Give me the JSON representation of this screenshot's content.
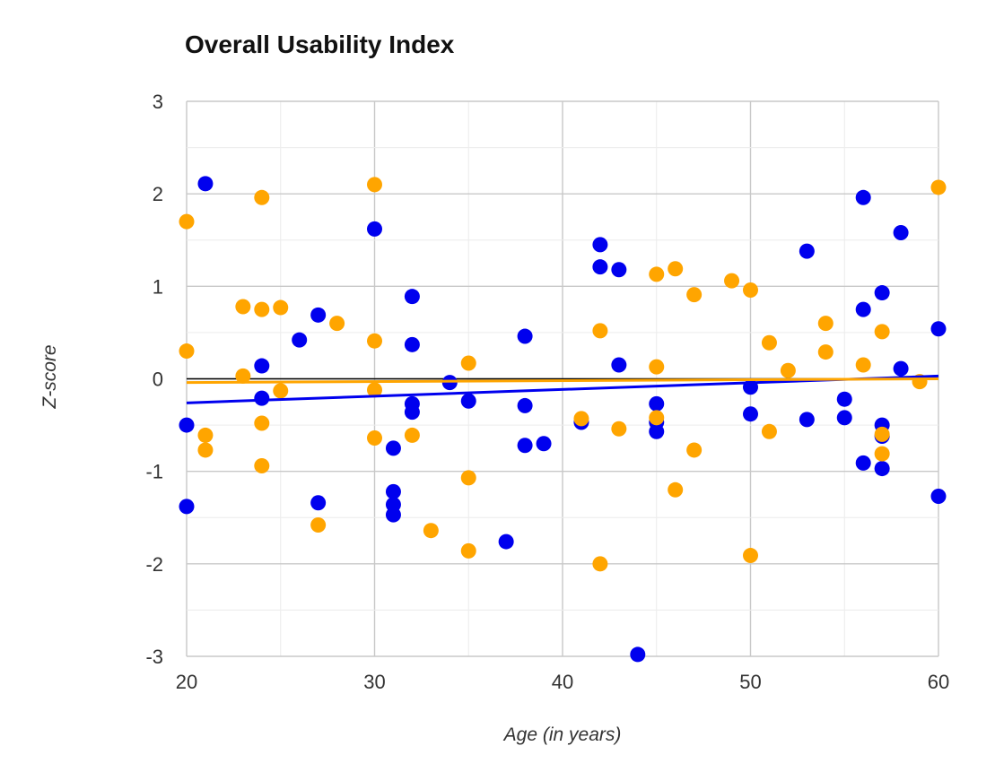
{
  "chart_data": {
    "type": "scatter",
    "title": "Overall Usability Index",
    "xlabel": "Age (in years)",
    "ylabel": "Z-score",
    "xlim": [
      20,
      60
    ],
    "ylim": [
      -3,
      3
    ],
    "x_ticks": [
      20,
      30,
      40,
      50,
      60
    ],
    "y_ticks": [
      3,
      2,
      1,
      0,
      -1,
      -2,
      -3
    ],
    "x_tick_labels": [
      "20",
      "30",
      "40",
      "50",
      "60"
    ],
    "y_tick_labels": [
      "3",
      "2",
      "1",
      "0",
      "-1",
      "-2",
      "-3"
    ],
    "grid": true,
    "legend": "none",
    "reference_line": {
      "y": 0,
      "color": "#000000"
    },
    "series": [
      {
        "color": "#0000ee",
        "points": [
          [
            20,
            -0.5
          ],
          [
            20,
            -1.38
          ],
          [
            21,
            2.11
          ],
          [
            24,
            0.14
          ],
          [
            24,
            -0.21
          ],
          [
            26,
            0.42
          ],
          [
            27,
            0.69
          ],
          [
            27,
            -1.34
          ],
          [
            30,
            1.62
          ],
          [
            31,
            -0.75
          ],
          [
            31,
            -1.22
          ],
          [
            31,
            -1.36
          ],
          [
            31,
            -1.47
          ],
          [
            32,
            0.89
          ],
          [
            32,
            0.37
          ],
          [
            32,
            -0.27
          ],
          [
            32,
            -0.36
          ],
          [
            34,
            -0.04
          ],
          [
            35,
            -0.24
          ],
          [
            37,
            -1.76
          ],
          [
            38,
            0.46
          ],
          [
            38,
            -0.29
          ],
          [
            38,
            -0.72
          ],
          [
            39,
            -0.7
          ],
          [
            41,
            -0.47
          ],
          [
            42,
            1.45
          ],
          [
            42,
            1.21
          ],
          [
            43,
            1.18
          ],
          [
            43,
            0.15
          ],
          [
            44,
            -2.98
          ],
          [
            45,
            -0.27
          ],
          [
            45,
            -0.47
          ],
          [
            45,
            -0.57
          ],
          [
            50,
            -0.09
          ],
          [
            50,
            -0.38
          ],
          [
            53,
            1.38
          ],
          [
            53,
            -0.44
          ],
          [
            55,
            -0.22
          ],
          [
            55,
            -0.42
          ],
          [
            56,
            1.96
          ],
          [
            56,
            0.75
          ],
          [
            56,
            -0.91
          ],
          [
            57,
            0.93
          ],
          [
            57,
            -0.5
          ],
          [
            57,
            -0.62
          ],
          [
            57,
            -0.97
          ],
          [
            58,
            1.58
          ],
          [
            58,
            0.11
          ],
          [
            60,
            0.54
          ],
          [
            60,
            -1.27
          ]
        ],
        "trend": [
          [
            20,
            -0.26
          ],
          [
            60,
            0.03
          ]
        ]
      },
      {
        "color": "#ffa500",
        "points": [
          [
            20,
            1.7
          ],
          [
            20,
            0.3
          ],
          [
            21,
            -0.61
          ],
          [
            21,
            -0.77
          ],
          [
            23,
            0.78
          ],
          [
            23,
            0.03
          ],
          [
            24,
            1.96
          ],
          [
            24,
            0.75
          ],
          [
            24,
            -0.48
          ],
          [
            24,
            -0.94
          ],
          [
            25,
            0.77
          ],
          [
            25,
            -0.13
          ],
          [
            27,
            -1.58
          ],
          [
            28,
            0.6
          ],
          [
            30,
            2.1
          ],
          [
            30,
            0.41
          ],
          [
            30,
            -0.12
          ],
          [
            30,
            -0.64
          ],
          [
            32,
            -0.61
          ],
          [
            33,
            -1.64
          ],
          [
            35,
            0.17
          ],
          [
            35,
            -1.07
          ],
          [
            35,
            -1.86
          ],
          [
            41,
            -0.43
          ],
          [
            42,
            0.52
          ],
          [
            42,
            -2.0
          ],
          [
            43,
            -0.54
          ],
          [
            45,
            1.13
          ],
          [
            45,
            0.13
          ],
          [
            45,
            -0.42
          ],
          [
            46,
            1.19
          ],
          [
            46,
            -1.2
          ],
          [
            47,
            0.91
          ],
          [
            47,
            -0.77
          ],
          [
            49,
            1.06
          ],
          [
            50,
            0.96
          ],
          [
            50,
            -1.91
          ],
          [
            51,
            0.39
          ],
          [
            51,
            -0.57
          ],
          [
            52,
            0.09
          ],
          [
            54,
            0.6
          ],
          [
            54,
            0.29
          ],
          [
            56,
            0.15
          ],
          [
            57,
            0.51
          ],
          [
            57,
            -0.6
          ],
          [
            57,
            -0.81
          ],
          [
            59,
            -0.03
          ],
          [
            60,
            2.07
          ]
        ],
        "trend": [
          [
            20,
            -0.04
          ],
          [
            60,
            0.0
          ]
        ]
      }
    ]
  }
}
